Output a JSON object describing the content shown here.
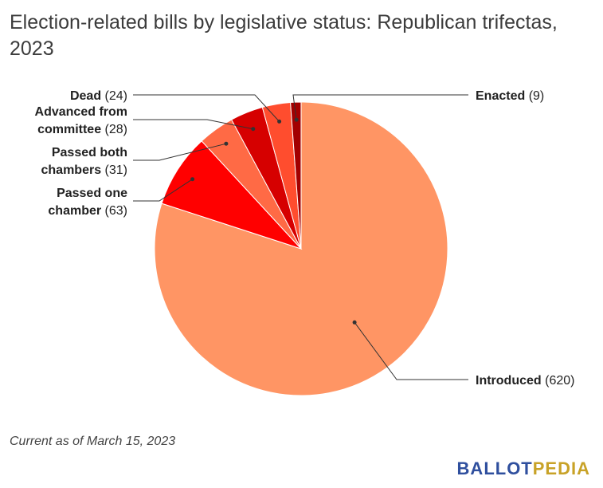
{
  "chart_data": {
    "type": "pie",
    "title": "Election-related bills by legislative status: Republican trifectas, 2023",
    "slices": [
      {
        "label": "Introduced",
        "value": 620,
        "color": "#ff9564"
      },
      {
        "label": "Passed one chamber",
        "value": 63,
        "color": "#ff0000"
      },
      {
        "label": "Passed both chambers",
        "value": 31,
        "color": "#ff6a45"
      },
      {
        "label": "Advanced from committee",
        "value": 28,
        "color": "#d60000"
      },
      {
        "label": "Dead",
        "value": 24,
        "color": "#ff4d2e"
      },
      {
        "label": "Enacted",
        "value": 9,
        "color": "#a30000"
      }
    ],
    "value_format": "({v})"
  },
  "footnote": "Current as of March 15, 2023",
  "brand": {
    "part1": "BALLOT",
    "part2": "PEDIA"
  }
}
